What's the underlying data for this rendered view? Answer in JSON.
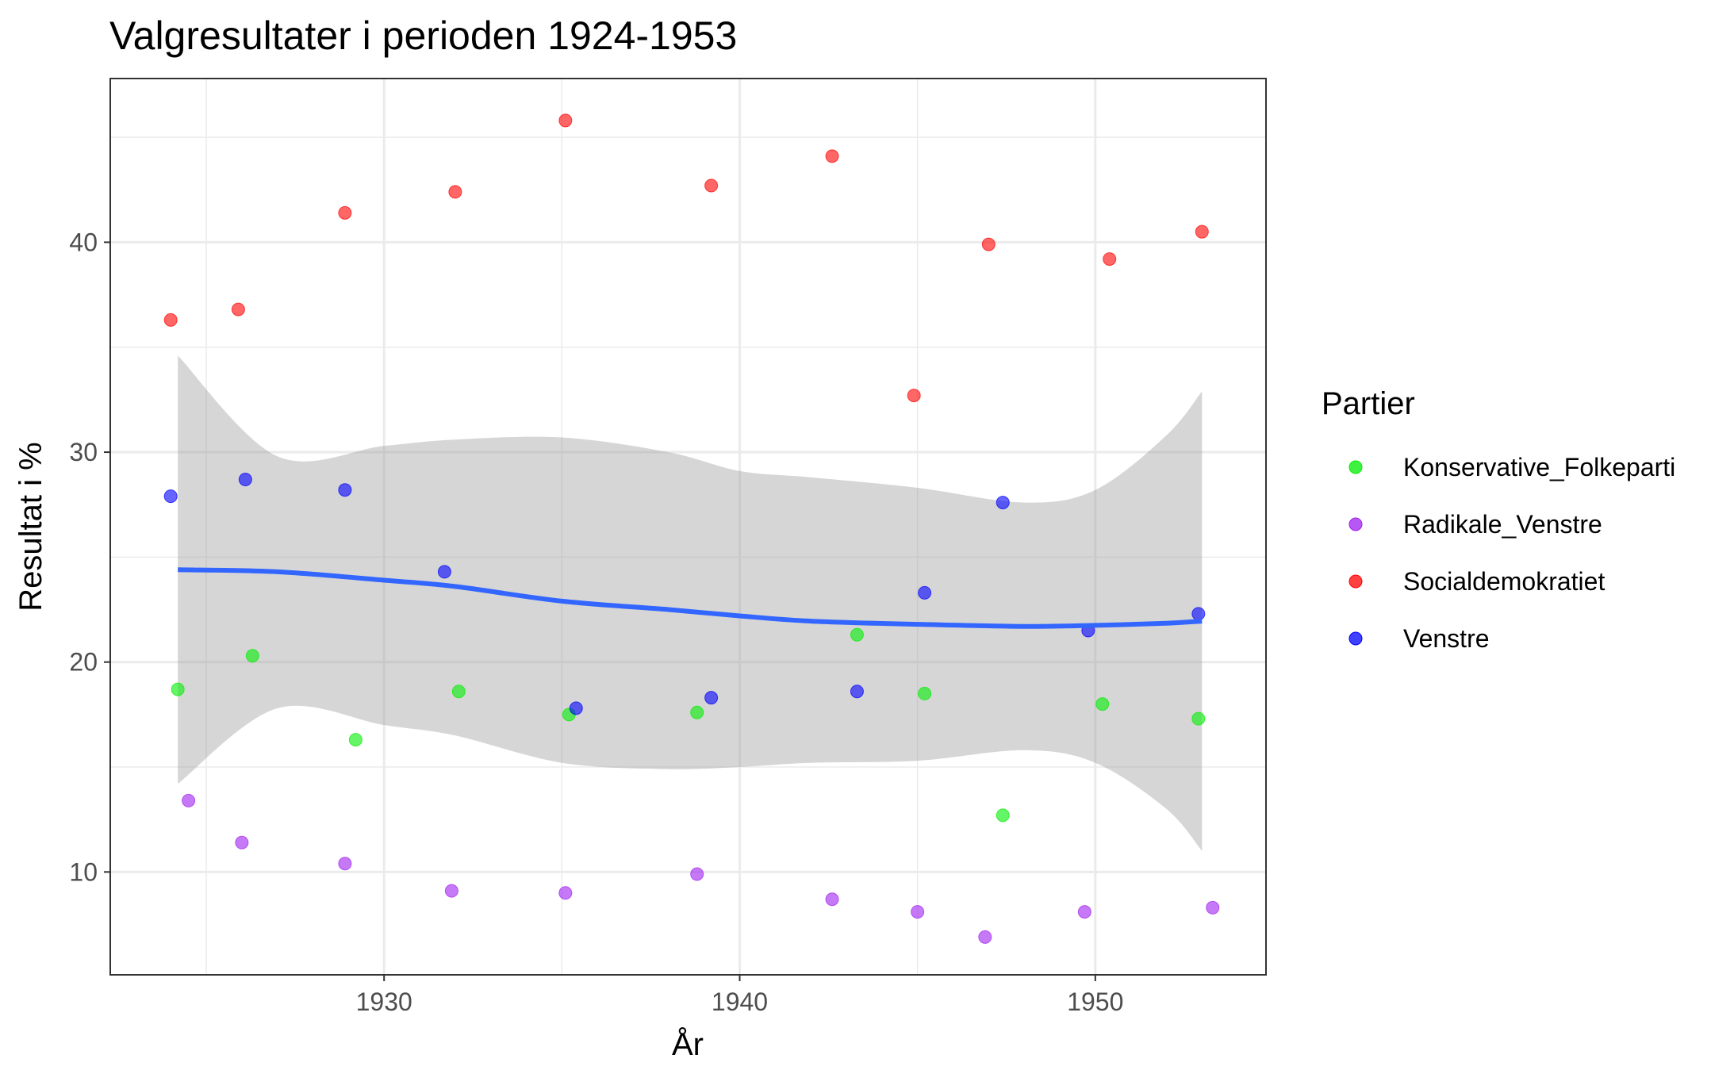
{
  "chart_data": {
    "type": "scatter",
    "title": "Valgresultater i perioden 1924-1953",
    "xlabel": "År",
    "ylabel": "Resultat i %",
    "xlim": [
      1922.3,
      1954.8
    ],
    "ylim": [
      5.1,
      47.8
    ],
    "x_ticks": [
      1930,
      1940,
      1950
    ],
    "y_ticks": [
      10,
      20,
      30,
      40
    ],
    "x_tick_labels": [
      "1930",
      "1940",
      "1950"
    ],
    "y_tick_labels": [
      "10",
      "20",
      "30",
      "40"
    ],
    "grid": true,
    "legend": {
      "title": "Partier",
      "position": "right"
    },
    "series": [
      {
        "name": "Konservative_Folkeparti",
        "color": "#00EE00",
        "points": [
          {
            "x": 1924.2,
            "y": 18.7
          },
          {
            "x": 1926.3,
            "y": 20.3
          },
          {
            "x": 1929.2,
            "y": 16.3
          },
          {
            "x": 1932.1,
            "y": 18.6
          },
          {
            "x": 1935.2,
            "y": 17.5
          },
          {
            "x": 1938.8,
            "y": 17.6
          },
          {
            "x": 1943.3,
            "y": 21.3
          },
          {
            "x": 1945.2,
            "y": 18.5
          },
          {
            "x": 1947.4,
            "y": 12.7
          },
          {
            "x": 1950.2,
            "y": 18.0
          },
          {
            "x": 1952.9,
            "y": 17.3
          }
        ]
      },
      {
        "name": "Radikale_Venstre",
        "color": "#A020F0",
        "points": [
          {
            "x": 1924.5,
            "y": 13.4
          },
          {
            "x": 1926.0,
            "y": 11.4
          },
          {
            "x": 1928.9,
            "y": 10.4
          },
          {
            "x": 1931.9,
            "y": 9.1
          },
          {
            "x": 1935.1,
            "y": 9.0
          },
          {
            "x": 1938.8,
            "y": 9.9
          },
          {
            "x": 1942.6,
            "y": 8.7
          },
          {
            "x": 1945.0,
            "y": 8.1
          },
          {
            "x": 1946.9,
            "y": 6.9
          },
          {
            "x": 1949.7,
            "y": 8.1
          },
          {
            "x": 1953.3,
            "y": 8.3
          }
        ]
      },
      {
        "name": "Socialdemokratiet",
        "color": "#FF0000",
        "points": [
          {
            "x": 1924.0,
            "y": 36.3
          },
          {
            "x": 1925.9,
            "y": 36.8
          },
          {
            "x": 1928.9,
            "y": 41.4
          },
          {
            "x": 1932.0,
            "y": 42.4
          },
          {
            "x": 1935.1,
            "y": 45.8
          },
          {
            "x": 1939.2,
            "y": 42.7
          },
          {
            "x": 1942.6,
            "y": 44.1
          },
          {
            "x": 1944.9,
            "y": 32.7
          },
          {
            "x": 1947.0,
            "y": 39.9
          },
          {
            "x": 1950.4,
            "y": 39.2
          },
          {
            "x": 1953.0,
            "y": 40.5
          }
        ]
      },
      {
        "name": "Venstre",
        "color": "#0000FF",
        "points": [
          {
            "x": 1924.0,
            "y": 27.9
          },
          {
            "x": 1926.1,
            "y": 28.7
          },
          {
            "x": 1928.9,
            "y": 28.2
          },
          {
            "x": 1931.7,
            "y": 24.3
          },
          {
            "x": 1935.4,
            "y": 17.8
          },
          {
            "x": 1939.2,
            "y": 18.3
          },
          {
            "x": 1943.3,
            "y": 18.6
          },
          {
            "x": 1945.2,
            "y": 23.3
          },
          {
            "x": 1947.4,
            "y": 27.6
          },
          {
            "x": 1949.8,
            "y": 21.5
          },
          {
            "x": 1952.9,
            "y": 22.3
          }
        ]
      }
    ],
    "smooth": {
      "color": "#3366FF",
      "band_color": "#999999",
      "x": [
        1924.2,
        1927,
        1930,
        1932,
        1935,
        1938,
        1940,
        1942,
        1945,
        1948,
        1950,
        1952,
        1953.0
      ],
      "y": [
        24.4,
        24.3,
        23.9,
        23.6,
        22.9,
        22.5,
        22.2,
        21.95,
        21.8,
        21.7,
        21.75,
        21.85,
        21.95
      ],
      "ymin": [
        14.2,
        17.8,
        17.0,
        16.5,
        15.2,
        14.9,
        15.0,
        15.2,
        15.3,
        15.8,
        15.2,
        13.0,
        11.0
      ],
      "ymax": [
        34.6,
        29.8,
        30.3,
        30.6,
        30.7,
        30.0,
        29.1,
        28.8,
        28.3,
        27.6,
        28.2,
        30.8,
        32.9
      ]
    }
  }
}
